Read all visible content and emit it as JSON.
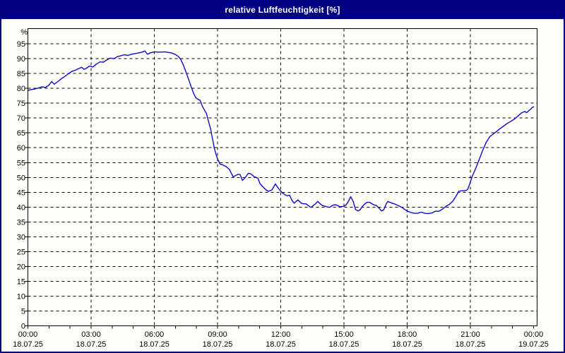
{
  "window": {
    "title": "relative Luftfeuchtigkeit [%]"
  },
  "colors": {
    "frame": "#000080",
    "titlebar_bg": "#000080",
    "titlebar_text": "#ffffff",
    "plot_bg": "#fffffa",
    "grid": "#000000",
    "axis": "#000000",
    "line": "#0a0acc",
    "text": "#000000"
  },
  "chart_data": {
    "type": "line",
    "title": "relative Luftfeuchtigkeit [%]",
    "xlabel": "",
    "ylabel": "%",
    "ylim": [
      0,
      100
    ],
    "xlim_hours": [
      0,
      24
    ],
    "grid": "dashed",
    "legend": "none",
    "y_ticks": [
      0,
      5,
      10,
      15,
      20,
      25,
      30,
      35,
      40,
      45,
      50,
      55,
      60,
      65,
      70,
      75,
      80,
      85,
      90,
      95
    ],
    "x_ticks": [
      {
        "h": 0,
        "time": "00:00",
        "date": "18.07.25"
      },
      {
        "h": 3,
        "time": "03:00",
        "date": "18.07.25"
      },
      {
        "h": 6,
        "time": "06:00",
        "date": "18.07.25"
      },
      {
        "h": 9,
        "time": "09:00",
        "date": "18.07.25"
      },
      {
        "h": 12,
        "time": "12:00",
        "date": "18.07.25"
      },
      {
        "h": 15,
        "time": "15:00",
        "date": "18.07.25"
      },
      {
        "h": 18,
        "time": "18:00",
        "date": "18.07.25"
      },
      {
        "h": 21,
        "time": "21:00",
        "date": "18.07.25"
      },
      {
        "h": 24,
        "time": "00:00",
        "date": "19.07.25"
      }
    ],
    "minor_x_tick_every_hours": 1,
    "series": [
      {
        "name": "relative Luftfeuchtigkeit",
        "x_hours": [
          0.0,
          0.17,
          0.33,
          0.5,
          0.67,
          0.83,
          1.0,
          1.13,
          1.25,
          1.42,
          1.58,
          1.75,
          1.92,
          2.08,
          2.25,
          2.42,
          2.55,
          2.67,
          2.83,
          2.92,
          3.08,
          3.25,
          3.42,
          3.58,
          3.75,
          3.92,
          4.08,
          4.25,
          4.42,
          4.58,
          4.75,
          4.92,
          5.08,
          5.25,
          5.42,
          5.55,
          5.67,
          5.83,
          6.0,
          6.17,
          6.33,
          6.5,
          6.67,
          6.83,
          7.0,
          7.13,
          7.25,
          7.38,
          7.5,
          7.63,
          7.75,
          7.87,
          7.97,
          8.08,
          8.17,
          8.28,
          8.4,
          8.47,
          8.56,
          8.62,
          8.68,
          8.73,
          8.79,
          8.84,
          8.9,
          8.95,
          9.01,
          9.06,
          9.12,
          9.25,
          9.42,
          9.57,
          9.74,
          9.85,
          9.96,
          10.07,
          10.18,
          10.3,
          10.46,
          10.58,
          10.74,
          10.91,
          11.02,
          11.13,
          11.3,
          11.41,
          11.58,
          11.75,
          11.86,
          11.97,
          12.08,
          12.19,
          12.31,
          12.42,
          12.53,
          12.64,
          12.73,
          12.81,
          12.89,
          12.98,
          13.09,
          13.2,
          13.31,
          13.42,
          13.51,
          13.65,
          13.76,
          13.87,
          13.98,
          14.09,
          14.2,
          14.32,
          14.49,
          14.6,
          14.71,
          14.82,
          15.0,
          15.1,
          15.21,
          15.32,
          15.44,
          15.55,
          15.66,
          15.77,
          15.88,
          15.99,
          16.1,
          16.22,
          16.33,
          16.44,
          16.55,
          16.66,
          16.78,
          16.89,
          17.0,
          17.08,
          17.25,
          17.42,
          17.58,
          17.75,
          17.92,
          18.0,
          18.17,
          18.33,
          18.5,
          18.67,
          18.83,
          19.0,
          19.17,
          19.33,
          19.5,
          19.67,
          19.83,
          20.0,
          20.17,
          20.33,
          20.45,
          20.58,
          20.75,
          20.87,
          20.97,
          21.08,
          21.25,
          21.42,
          21.58,
          21.75,
          21.92,
          22.08,
          22.25,
          22.42,
          22.58,
          22.75,
          22.92,
          23.08,
          23.25,
          23.42,
          23.58,
          23.67,
          23.83,
          23.95,
          24.0
        ],
        "values": [
          79.3,
          79.6,
          79.8,
          80.1,
          80.5,
          80.3,
          81.1,
          82.3,
          81.4,
          82.3,
          83.2,
          84.0,
          84.9,
          85.7,
          86.1,
          86.7,
          87.1,
          86.4,
          87.0,
          87.5,
          87.2,
          88.2,
          88.9,
          88.8,
          89.6,
          90.2,
          90.0,
          90.7,
          91.0,
          91.3,
          91.1,
          91.5,
          91.7,
          91.9,
          92.2,
          92.6,
          91.5,
          92.0,
          92.3,
          92.2,
          92.2,
          92.3,
          92.1,
          91.9,
          91.4,
          90.8,
          89.8,
          87.8,
          85.5,
          83.0,
          80.5,
          78.2,
          76.8,
          76.3,
          76.0,
          74.0,
          72.4,
          71.6,
          69.2,
          67.6,
          66.1,
          64.1,
          62.1,
          60.1,
          58.5,
          57.3,
          56.1,
          55.4,
          54.5,
          54.2,
          53.6,
          52.6,
          50.2,
          50.6,
          51.0,
          51.0,
          49.0,
          49.8,
          51.4,
          51.2,
          50.2,
          49.8,
          47.8,
          47.0,
          45.8,
          45.3,
          45.8,
          47.8,
          46.6,
          45.6,
          44.8,
          44.2,
          43.8,
          44.0,
          42.3,
          41.3,
          41.9,
          42.4,
          41.9,
          41.3,
          41.1,
          41.1,
          40.5,
          39.9,
          40.3,
          41.1,
          41.9,
          41.1,
          40.5,
          40.3,
          40.1,
          39.9,
          40.7,
          40.8,
          40.5,
          40.1,
          40.3,
          40.7,
          41.9,
          43.5,
          41.9,
          39.2,
          38.7,
          39.1,
          40.3,
          41.1,
          41.6,
          41.6,
          41.1,
          40.7,
          40.5,
          39.7,
          38.7,
          39.1,
          41.0,
          41.9,
          41.4,
          41.0,
          40.5,
          39.9,
          39.0,
          38.7,
          38.2,
          37.9,
          37.9,
          38.3,
          37.9,
          37.8,
          38.0,
          38.6,
          38.6,
          39.3,
          40.2,
          40.9,
          42.0,
          43.8,
          45.3,
          45.5,
          45.5,
          45.9,
          47.8,
          50.2,
          53.0,
          56.0,
          59.0,
          61.8,
          63.7,
          64.6,
          65.5,
          66.5,
          67.3,
          68.2,
          68.9,
          69.6,
          70.6,
          71.7,
          72.2,
          71.8,
          72.8,
          73.6,
          73.8
        ]
      }
    ]
  }
}
